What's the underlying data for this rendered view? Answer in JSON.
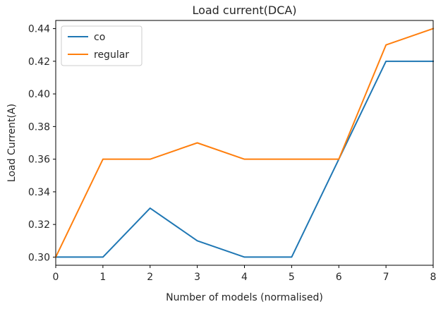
{
  "chart_data": {
    "type": "line",
    "title": "Load current(DCA)",
    "xlabel": "Number of models (normalised)",
    "ylabel": "Load Current(A)",
    "x": [
      0,
      1,
      2,
      3,
      4,
      5,
      6,
      7,
      8
    ],
    "xlim": [
      0,
      8
    ],
    "ylim": [
      0.295,
      0.445
    ],
    "xticks": [
      "0",
      "1",
      "2",
      "3",
      "4",
      "5",
      "6",
      "7",
      "8"
    ],
    "yticks": [
      "0.30",
      "0.32",
      "0.34",
      "0.36",
      "0.38",
      "0.40",
      "0.42",
      "0.44"
    ],
    "grid": false,
    "legend_position": "upper left",
    "series": [
      {
        "name": "co",
        "color": "#1f77b4",
        "values": [
          0.3,
          0.3,
          0.33,
          0.31,
          0.3,
          0.3,
          0.36,
          0.42,
          0.42
        ]
      },
      {
        "name": "regular",
        "color": "#ff7f0e",
        "values": [
          0.3,
          0.36,
          0.36,
          0.37,
          0.36,
          0.36,
          0.36,
          0.43,
          0.44
        ]
      }
    ]
  }
}
